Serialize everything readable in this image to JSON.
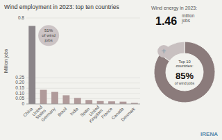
{
  "chart_data": [
    {
      "type": "bar",
      "title": "Wind employment in 2023: top ten countries",
      "ylabel": "Million jobs",
      "categories": [
        "China",
        "United\nStates",
        "Germany",
        "Brazil",
        "India",
        "Spain",
        "United\nKingdom",
        "France",
        "Canada",
        "Denmark"
      ],
      "values": [
        0.745,
        0.135,
        0.115,
        0.083,
        0.058,
        0.038,
        0.028,
        0.025,
        0.022,
        0.01
      ],
      "colors": [
        "#8B8589",
        "#B09A9A",
        "#B09A9A",
        "#B09A9A",
        "#B09A9A",
        "#B09A9A",
        "#B09A9A",
        "#B09A9A",
        "#B09A9A",
        "#B09A9A"
      ],
      "ylim": [
        0,
        0.82
      ],
      "yticks": [
        0,
        0.05,
        {
          "value": 0.1,
          "label": "0.10"
        },
        0.15,
        {
          "value": 0.2,
          "label": "0.20"
        },
        0.25,
        {
          "value": 0.82,
          "label": "0.8"
        }
      ],
      "grid": true,
      "annotation": "51%\nof wind\njobs"
    },
    {
      "type": "pie",
      "title": "Wind energy in 2023:",
      "values": [
        85,
        15
      ],
      "colors": [
        "#8B7B7B",
        "#C8C0C0"
      ],
      "annotations": [
        "1.46",
        "million\njobs",
        "Top 10\ncountries:",
        "85%",
        "of wind jobs",
        "+",
        "IRENA"
      ]
    }
  ]
}
